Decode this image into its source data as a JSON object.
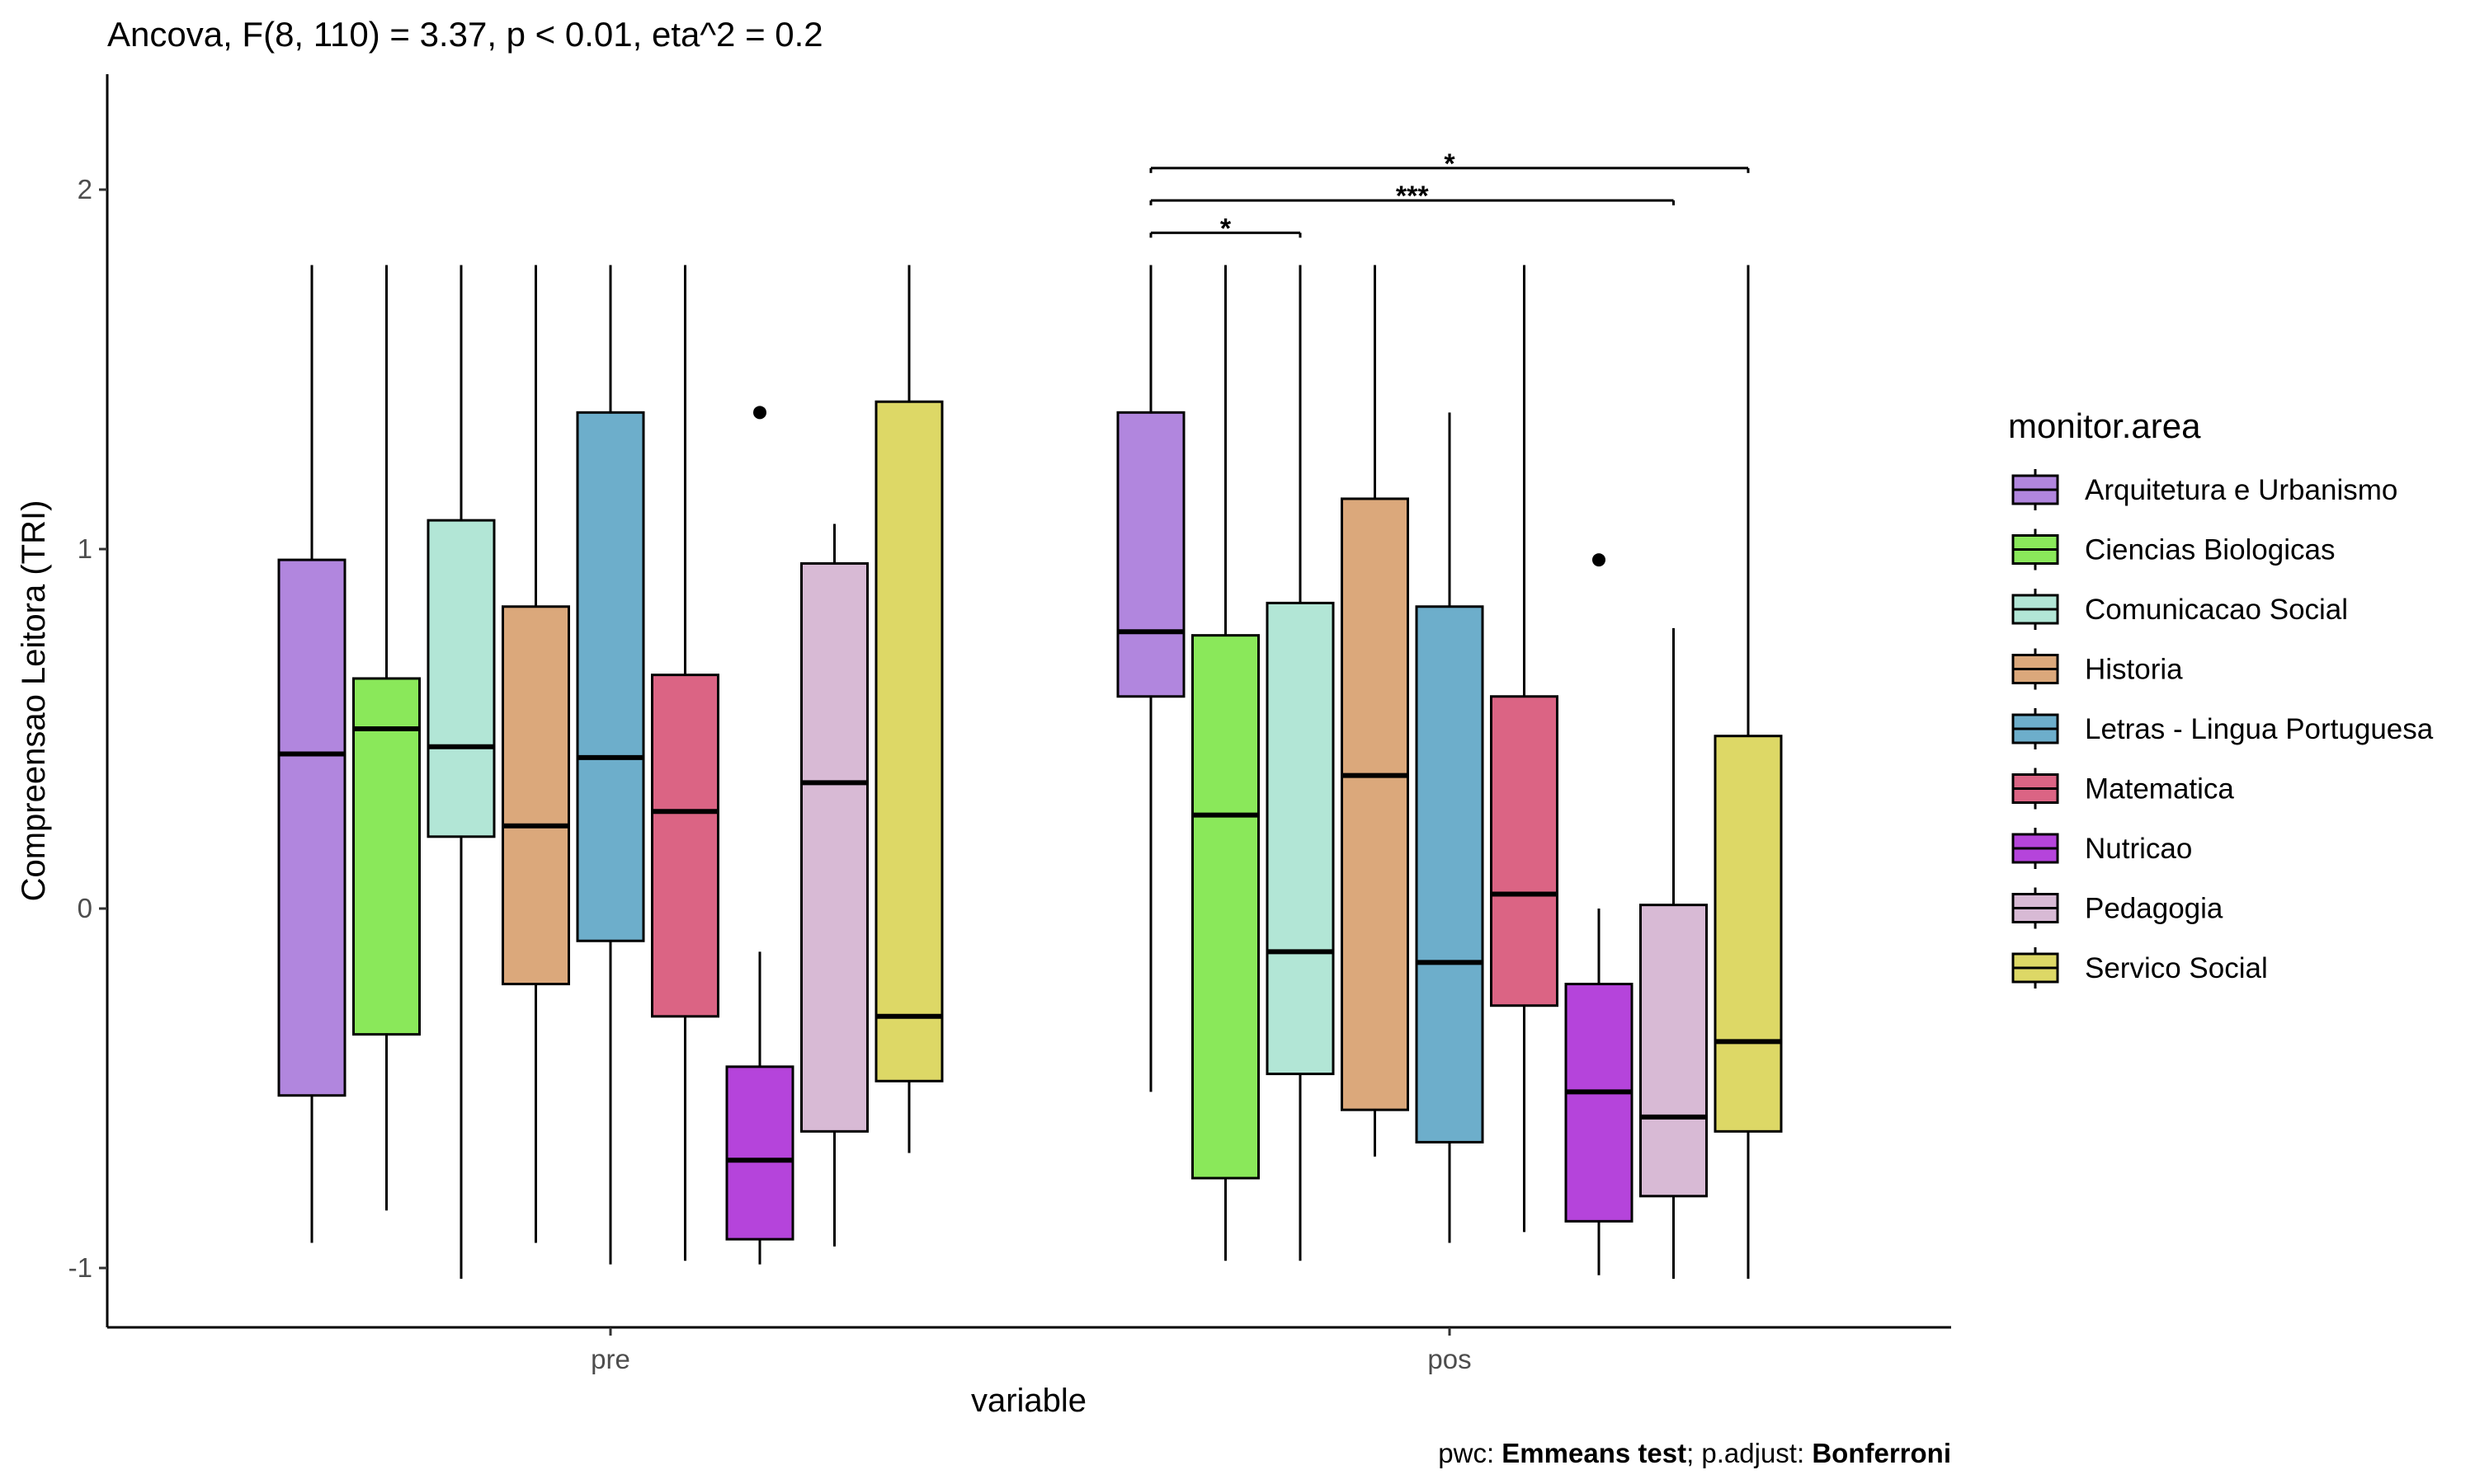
{
  "chart_data": {
    "type": "boxplot",
    "title": "Ancova, F(8, 110) = 3.37, p < 0.01, eta^2 = 0.2",
    "xlabel": "variable",
    "ylabel": "Compreensao Leitora (TRI)",
    "categories": [
      "pre",
      "pos"
    ],
    "y_ticks": [
      -1,
      0,
      1,
      2
    ],
    "y_tick_labels": [
      "-1",
      "0",
      "1",
      "2"
    ],
    "ylim": [
      -1.19,
      2.3
    ],
    "legend": {
      "title": "monitor.area",
      "position": "right"
    },
    "caption": {
      "part1": "pwc: ",
      "part2": "Emmeans test",
      "part3": "; p.adjust: ",
      "part4": "Bonferroni"
    },
    "series": [
      {
        "name": "Arquitetura e Urbanismo",
        "color": "#B186DE",
        "boxes": [
          {
            "whisker_low": -0.93,
            "q1": -0.52,
            "median": 0.43,
            "q3": 0.97,
            "whisker_high": 1.79,
            "outliers": []
          },
          {
            "whisker_low": -0.51,
            "q1": 0.59,
            "median": 0.77,
            "q3": 1.38,
            "whisker_high": 1.79,
            "outliers": []
          }
        ]
      },
      {
        "name": "Ciencias Biologicas",
        "color": "#8AE85A",
        "boxes": [
          {
            "whisker_low": -0.84,
            "q1": -0.35,
            "median": 0.5,
            "q3": 0.64,
            "whisker_high": 1.79,
            "outliers": []
          },
          {
            "whisker_low": -0.98,
            "q1": -0.75,
            "median": 0.26,
            "q3": 0.76,
            "whisker_high": 1.79,
            "outliers": []
          }
        ]
      },
      {
        "name": "Comunicacao Social",
        "color": "#B2E6D6",
        "boxes": [
          {
            "whisker_low": -1.03,
            "q1": 0.2,
            "median": 0.45,
            "q3": 1.08,
            "whisker_high": 1.79,
            "outliers": []
          },
          {
            "whisker_low": -0.98,
            "q1": -0.46,
            "median": -0.12,
            "q3": 0.85,
            "whisker_high": 1.79,
            "outliers": []
          }
        ]
      },
      {
        "name": "Historia",
        "color": "#DBA87B",
        "boxes": [
          {
            "whisker_low": -0.93,
            "q1": -0.21,
            "median": 0.23,
            "q3": 0.84,
            "whisker_high": 1.79,
            "outliers": []
          },
          {
            "whisker_low": -0.69,
            "q1": -0.56,
            "median": 0.37,
            "q3": 1.14,
            "whisker_high": 1.79,
            "outliers": []
          }
        ]
      },
      {
        "name": "Letras - Lingua Portuguesa",
        "color": "#6DAECB",
        "boxes": [
          {
            "whisker_low": -0.99,
            "q1": -0.09,
            "median": 0.42,
            "q3": 1.38,
            "whisker_high": 1.79,
            "outliers": []
          },
          {
            "whisker_low": -0.93,
            "q1": -0.65,
            "median": -0.15,
            "q3": 0.84,
            "whisker_high": 1.38,
            "outliers": []
          }
        ]
      },
      {
        "name": "Matematica",
        "color": "#DB6484",
        "boxes": [
          {
            "whisker_low": -0.98,
            "q1": -0.3,
            "median": 0.27,
            "q3": 0.65,
            "whisker_high": 1.79,
            "outliers": []
          },
          {
            "whisker_low": -0.9,
            "q1": -0.27,
            "median": 0.04,
            "q3": 0.59,
            "whisker_high": 1.79,
            "outliers": []
          }
        ]
      },
      {
        "name": "Nutricao",
        "color": "#B544DB",
        "boxes": [
          {
            "whisker_low": -0.99,
            "q1": -0.92,
            "median": -0.7,
            "q3": -0.44,
            "whisker_high": -0.12,
            "outliers": [
              1.38
            ]
          },
          {
            "whisker_low": -1.02,
            "q1": -0.87,
            "median": -0.51,
            "q3": -0.21,
            "whisker_high": 0.0,
            "outliers": [
              0.97
            ]
          }
        ]
      },
      {
        "name": "Pedagogia",
        "color": "#D8BAD5",
        "boxes": [
          {
            "whisker_low": -0.94,
            "q1": -0.62,
            "median": 0.35,
            "q3": 0.96,
            "whisker_high": 1.07,
            "outliers": []
          },
          {
            "whisker_low": -1.03,
            "q1": -0.8,
            "median": -0.58,
            "q3": 0.01,
            "whisker_high": 0.78,
            "outliers": []
          }
        ]
      },
      {
        "name": "Servico Social",
        "color": "#DDD866",
        "boxes": [
          {
            "whisker_low": -0.68,
            "q1": -0.48,
            "median": -0.3,
            "q3": 1.41,
            "whisker_high": 1.79,
            "outliers": []
          },
          {
            "whisker_low": -1.03,
            "q1": -0.62,
            "median": -0.37,
            "q3": 0.48,
            "whisker_high": 1.79,
            "outliers": []
          }
        ]
      }
    ],
    "significance": [
      {
        "category": "pos",
        "from": "Arquitetura e Urbanismo",
        "to": "Comunicacao Social",
        "y": 1.88,
        "label": "*"
      },
      {
        "category": "pos",
        "from": "Arquitetura e Urbanismo",
        "to": "Pedagogia",
        "y": 1.97,
        "label": "***"
      },
      {
        "category": "pos",
        "from": "Arquitetura e Urbanismo",
        "to": "Servico Social",
        "y": 2.06,
        "label": "*"
      }
    ]
  }
}
